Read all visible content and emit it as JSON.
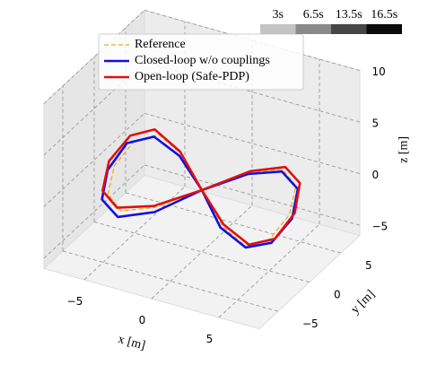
{
  "chart_data": {
    "type": "line3d",
    "xlabel": "x [m]",
    "ylabel": "y [m]",
    "zlabel": "z [m]",
    "xlim": [
      -8,
      8
    ],
    "ylim": [
      -8,
      8
    ],
    "zlim": [
      -6,
      10
    ],
    "xticks": [
      {
        "value": -5,
        "label": "−5"
      },
      0,
      5
    ],
    "yticks": [
      {
        "value": -5,
        "label": "−5"
      },
      0,
      5
    ],
    "zticks": [
      {
        "value": -5,
        "label": "−5"
      },
      0,
      5,
      10
    ],
    "grid": true,
    "legend": "upper center",
    "time_legend": [
      {
        "label": "3s",
        "color": "#c4c4c4"
      },
      {
        "label": "6.5s",
        "color": "#8a8a8a"
      },
      {
        "label": "13.5s",
        "color": "#464646"
      },
      {
        "label": "16.5s",
        "color": "#0a0a0a"
      }
    ],
    "series": [
      {
        "name": "Reference",
        "color": "#f5a623",
        "dashed": true,
        "x": [
          0,
          2.5,
          4.6,
          6,
          6.5,
          6,
          4.6,
          2.5,
          0,
          -2.5,
          -4.6,
          -6,
          -6.5,
          -6,
          -4.6,
          -2.5,
          0
        ],
        "y": [
          0,
          2.1,
          3,
          2.1,
          0,
          -2.1,
          -3,
          -2.1,
          0,
          2.1,
          3,
          2.1,
          0,
          -2.1,
          -3,
          -2.1,
          0
        ],
        "z": [
          0,
          1.4,
          2,
          1.4,
          0,
          -1.4,
          -2,
          -1.4,
          0,
          1.4,
          2,
          1.4,
          0,
          -1.4,
          -2,
          -1.4,
          0
        ]
      },
      {
        "name": "Closed-loop w/o couplings",
        "color": "#1010e0",
        "dashed": false,
        "x": [
          0,
          2.4,
          4.5,
          6.1,
          6.7,
          6.2,
          4.7,
          2.4,
          0,
          -2.7,
          -5,
          -6.6,
          -7,
          -6.4,
          -4.8,
          -2.5,
          0
        ],
        "y": [
          0,
          2.2,
          3.1,
          2.2,
          0,
          -2.2,
          -3.1,
          -2.2,
          0,
          2.2,
          3.1,
          2.2,
          0,
          -2.2,
          -3.1,
          -2.2,
          0
        ],
        "z": [
          0,
          1.2,
          1.7,
          1.1,
          -0.3,
          -1.6,
          -2.1,
          -1.5,
          0,
          1.1,
          1.6,
          0.9,
          -0.6,
          -2,
          -2.6,
          -1.8,
          0
        ]
      },
      {
        "name": "Open-loop (Safe-PDP)",
        "color": "#e01010",
        "dashed": false,
        "x": [
          0,
          2.6,
          4.8,
          6.3,
          6.9,
          6.4,
          4.9,
          2.6,
          0,
          -2.6,
          -4.9,
          -6.3,
          -6.9,
          -6.4,
          -4.9,
          -2.6,
          0
        ],
        "y": [
          0,
          2.1,
          3,
          2.1,
          0,
          -2.1,
          -3,
          -2.1,
          0,
          2.1,
          3,
          2.1,
          0,
          -2.1,
          -3,
          -2.1,
          0
        ],
        "z": [
          0,
          1.6,
          2.3,
          1.8,
          0.3,
          -1.2,
          -1.8,
          -1.2,
          0,
          1.6,
          2.4,
          1.8,
          0.3,
          -1.2,
          -1.8,
          -1.3,
          0
        ]
      }
    ]
  }
}
